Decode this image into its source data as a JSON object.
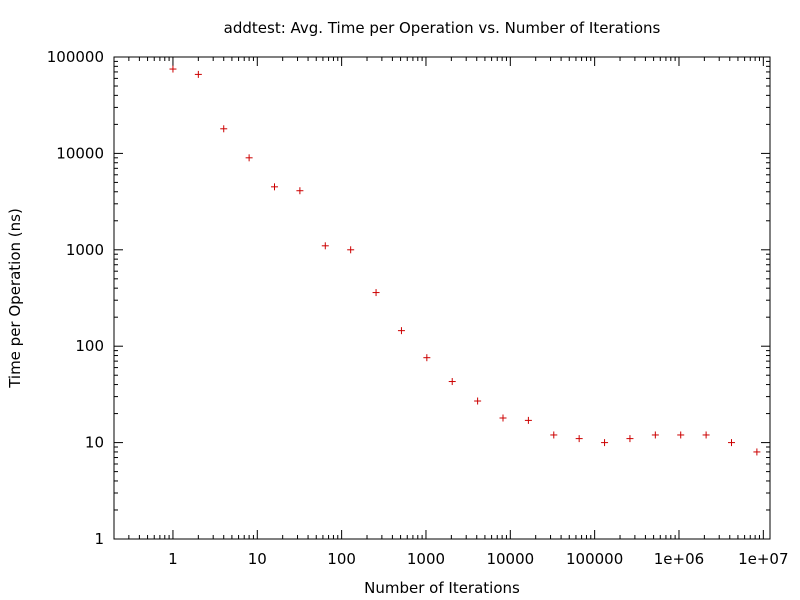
{
  "chart_data": {
    "type": "scatter",
    "title": "addtest: Avg. Time per Operation vs. Number of Iterations",
    "xlabel": "Number of Iterations",
    "ylabel": "Time per Operation (ns)",
    "xscale": "log",
    "yscale": "log",
    "xlim": [
      0.2,
      12000000
    ],
    "ylim": [
      1,
      100000
    ],
    "grid": false,
    "legend": "none",
    "marker": "+",
    "marker_color": "#cc0000",
    "x_ticks": [
      1,
      10,
      100,
      1000,
      10000,
      100000,
      1000000,
      10000000
    ],
    "x_tick_labels": [
      "1",
      "10",
      "100",
      "1000",
      "10000",
      "100000",
      "1e+06",
      "1e+07"
    ],
    "y_ticks": [
      1,
      10,
      100,
      1000,
      10000,
      100000
    ],
    "y_tick_labels": [
      "1",
      "10",
      "100",
      "1000",
      "10000",
      "100000"
    ],
    "points": [
      {
        "x": 1,
        "y": 75000
      },
      {
        "x": 2,
        "y": 66000
      },
      {
        "x": 4,
        "y": 18000
      },
      {
        "x": 8,
        "y": 9000
      },
      {
        "x": 16,
        "y": 4500
      },
      {
        "x": 32,
        "y": 4100
      },
      {
        "x": 64,
        "y": 1100
      },
      {
        "x": 128,
        "y": 1000
      },
      {
        "x": 256,
        "y": 360
      },
      {
        "x": 512,
        "y": 145
      },
      {
        "x": 1024,
        "y": 76
      },
      {
        "x": 2048,
        "y": 43
      },
      {
        "x": 4096,
        "y": 27
      },
      {
        "x": 8192,
        "y": 18
      },
      {
        "x": 16384,
        "y": 17
      },
      {
        "x": 32768,
        "y": 12
      },
      {
        "x": 65536,
        "y": 11
      },
      {
        "x": 131072,
        "y": 10
      },
      {
        "x": 262144,
        "y": 11
      },
      {
        "x": 524288,
        "y": 12
      },
      {
        "x": 1048576,
        "y": 12
      },
      {
        "x": 2097152,
        "y": 12
      },
      {
        "x": 4194304,
        "y": 10
      },
      {
        "x": 8388608,
        "y": 8
      }
    ]
  }
}
